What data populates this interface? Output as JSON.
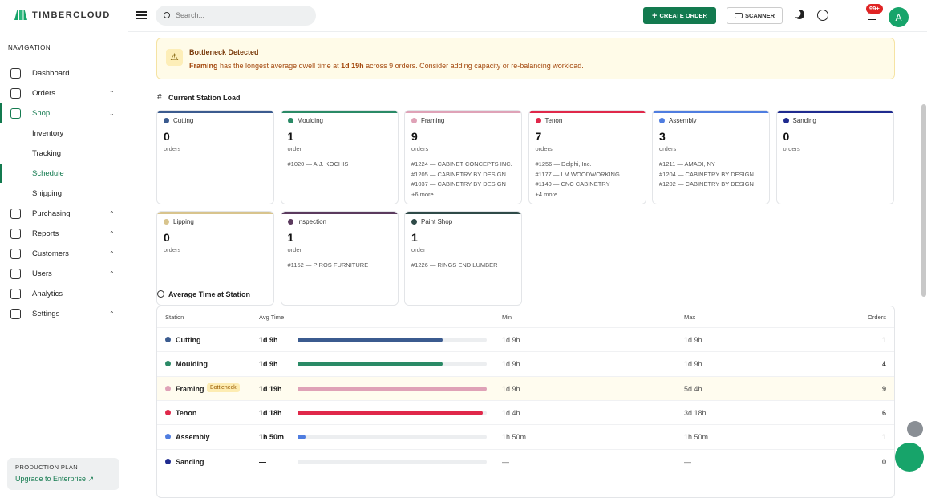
{
  "brand": "TIMBERCLOUD",
  "sidebar": {
    "heading": "NAVIGATION",
    "items": [
      {
        "label": "Dashboard"
      },
      {
        "label": "Orders",
        "expandable": true
      },
      {
        "label": "Shop",
        "expandable": true,
        "expanded": true,
        "active": true,
        "children": [
          {
            "label": "Inventory"
          },
          {
            "label": "Tracking"
          },
          {
            "label": "Schedule",
            "active": true
          },
          {
            "label": "Shipping"
          }
        ]
      },
      {
        "label": "Purchasing",
        "expandable": true
      },
      {
        "label": "Reports",
        "expandable": true
      },
      {
        "label": "Customers",
        "expandable": true
      },
      {
        "label": "Users",
        "expandable": true
      },
      {
        "label": "Analytics"
      },
      {
        "label": "Settings",
        "expandable": true
      }
    ],
    "footer": {
      "label": "PRODUCTION PLAN",
      "link": "Upgrade to Enterprise ↗"
    }
  },
  "topbar": {
    "search": "Search...",
    "create": "CREATE ORDER",
    "scanner": "SCANNER",
    "badge": "99+",
    "avatar": "A"
  },
  "alert": {
    "title": "Bottleneck Detected",
    "station": "Framing",
    "text1": " has the longest average dwell time at ",
    "time": "1d 19h",
    "text2": " across 9 orders. Consider adding capacity or re-balancing workload."
  },
  "station_load": {
    "title": "Current Station Load",
    "cards": [
      {
        "name": "Cutting",
        "color": "#3b5b8f",
        "count": 0,
        "unit": "orders",
        "orders": []
      },
      {
        "name": "Moulding",
        "color": "#2a8a66",
        "count": 1,
        "unit": "order",
        "orders": [
          "#1020 — A.J. KOCHIS"
        ]
      },
      {
        "name": "Framing",
        "color": "#dfa2b7",
        "count": 9,
        "unit": "orders",
        "orders": [
          "#1224 — CABINET CONCEPTS INC.",
          "#1205 — CABINETRY BY DESIGN",
          "#1037 — CABINETRY BY DESIGN"
        ],
        "more": "+6 more"
      },
      {
        "name": "Tenon",
        "color": "#e0284a",
        "count": 7,
        "unit": "orders",
        "orders": [
          "#1256 — Delphi, Inc.",
          "#1177 — LM WOODWORKING",
          "#1140 — CNC CABINETRY"
        ],
        "more": "+4 more"
      },
      {
        "name": "Assembly",
        "color": "#4f7de0",
        "count": 3,
        "unit": "orders",
        "orders": [
          "#1211 — AMADI, NY",
          "#1204 — CABINETRY BY DESIGN",
          "#1202 — CABINETRY BY DESIGN"
        ]
      },
      {
        "name": "Sanding",
        "color": "#1f2b8f",
        "count": 0,
        "unit": "orders",
        "orders": []
      },
      {
        "name": "Lipping",
        "color": "#d8c48d",
        "count": 0,
        "unit": "orders",
        "orders": []
      },
      {
        "name": "Inspection",
        "color": "#5b3a5e",
        "count": 1,
        "unit": "order",
        "orders": [
          "#1152 — PIROS FURNITURE"
        ]
      },
      {
        "name": "Paint Shop",
        "color": "#2f4a48",
        "count": 1,
        "unit": "order",
        "orders": [
          "#1226 — RINGS END LUMBER"
        ]
      }
    ]
  },
  "avg_time": {
    "title": "Average Time at Station",
    "columns": [
      "Station",
      "Avg Time",
      "Min",
      "Max",
      "Orders"
    ],
    "rows": [
      {
        "station": "Cutting",
        "avg": "1d 9h",
        "min": "1d 9h",
        "max": "1d 9h",
        "orders": 1
      },
      {
        "station": "Moulding",
        "avg": "1d 9h",
        "min": "1d 9h",
        "max": "1d 9h",
        "orders": 4
      },
      {
        "station": "Framing",
        "badge": "Bottleneck",
        "avg": "1d 19h",
        "min": "1d 9h",
        "max": "5d 4h",
        "orders": 9
      },
      {
        "station": "Tenon",
        "avg": "1d 18h",
        "min": "1d 4h",
        "max": "3d 18h",
        "orders": 6
      },
      {
        "station": "Assembly",
        "avg": "1h 50m",
        "min": "1h 50m",
        "max": "1h 50m",
        "orders": 1
      },
      {
        "station": "Sanding",
        "avg": "—",
        "min": "—",
        "max": "—",
        "orders": 0
      }
    ]
  }
}
